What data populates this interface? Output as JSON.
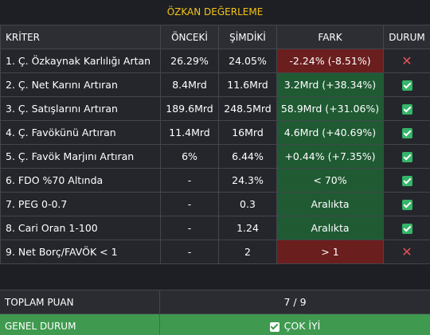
{
  "title": "ÖZKAN DEĞERLEME",
  "columns": {
    "kriter": "KRİTER",
    "onceki": "ÖNCEKİ",
    "simdiki": "ŞİMDİKİ",
    "fark": "FARK",
    "durum": "DURUM"
  },
  "rows": [
    {
      "kriter": "1. Ç. Özkaynak Karlılığı Artan",
      "onceki": "26.29%",
      "simdiki": "24.05%",
      "fark": "-2.24% (-8.51%)",
      "status": "fail"
    },
    {
      "kriter": "2. Ç. Net Karını Artıran",
      "onceki": "8.4Mrd",
      "simdiki": "11.6Mrd",
      "fark": "3.2Mrd (+38.34%)",
      "status": "pass"
    },
    {
      "kriter": "3. Ç. Satışlarını Artıran",
      "onceki": "189.6Mrd",
      "simdiki": "248.5Mrd",
      "fark": "58.9Mrd (+31.06%)",
      "status": "pass"
    },
    {
      "kriter": "4. Ç. Favökünü Artıran",
      "onceki": "11.4Mrd",
      "simdiki": "16Mrd",
      "fark": "4.6Mrd (+40.69%)",
      "status": "pass"
    },
    {
      "kriter": "5. Ç. Favök Marjını Artıran",
      "onceki": "6%",
      "simdiki": "6.44%",
      "fark": "+0.44% (+7.35%)",
      "status": "pass"
    },
    {
      "kriter": "6. FDO %70 Altında",
      "onceki": "-",
      "simdiki": "24.3%",
      "fark": "< 70%",
      "status": "pass"
    },
    {
      "kriter": "7. PEG 0-0.7",
      "onceki": "-",
      "simdiki": "0.3",
      "fark": "Aralıkta",
      "status": "pass"
    },
    {
      "kriter": "8. Cari Oran 1-100",
      "onceki": "-",
      "simdiki": "1.24",
      "fark": "Aralıkta",
      "status": "pass"
    },
    {
      "kriter": "9. Net Borç/FAVÖK < 1",
      "onceki": "-",
      "simdiki": "2",
      "fark": "> 1",
      "status": "fail"
    }
  ],
  "summary": {
    "total_label": "TOPLAM PUAN",
    "total_value": "7 / 9",
    "general_label": "GENEL DURUM",
    "general_value": "ÇOK İYİ"
  },
  "colors": {
    "title": "#f2c318",
    "negative": "#6b1e1e",
    "positive": "#1f5a33",
    "general_bg": "#3f9a50"
  },
  "icons": {
    "pass": "check-icon",
    "fail": "cross-icon"
  }
}
